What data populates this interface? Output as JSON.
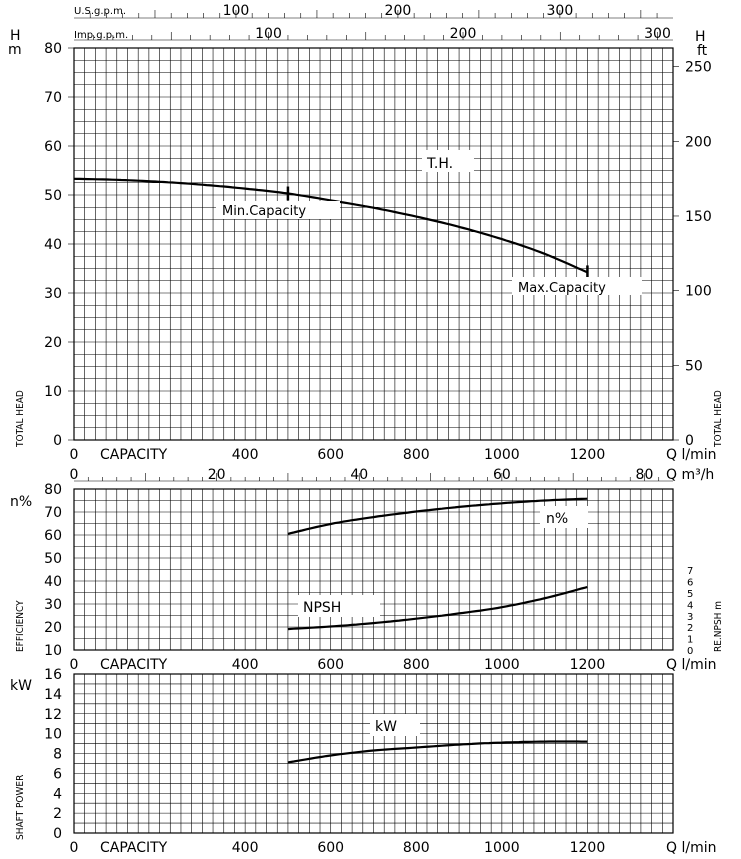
{
  "chart_data": [
    {
      "type": "line",
      "panel": "total-head",
      "ylabel_left": "TOTAL HEAD",
      "ylabel_right": "TOTAL HEAD",
      "unit_left": "H\nm",
      "unit_right": "H\nft",
      "left_ticks": [
        "0",
        "10",
        "20",
        "30",
        "40",
        "50",
        "60",
        "70",
        "80"
      ],
      "right_ticks": [
        "0",
        "50",
        "100",
        "150",
        "200",
        "250"
      ],
      "top_axis_1": {
        "label": "U.S.g.p.m.",
        "ticks": [
          "100",
          "200",
          "300"
        ]
      },
      "top_axis_2": {
        "label": "Imp.g.p.m.",
        "ticks": [
          "100",
          "200",
          "300"
        ]
      },
      "x_ticks": [
        "0",
        "400",
        "600",
        "800",
        "1000",
        "1200"
      ],
      "x_caption": "CAPACITY",
      "x_unit": "Q  l/min",
      "ylim": [
        0,
        80
      ],
      "xlim": [
        0,
        1400
      ],
      "grid": true,
      "series": [
        {
          "name": "T.H.",
          "x": [
            0,
            100,
            200,
            300,
            400,
            500,
            600,
            700,
            800,
            900,
            1000,
            1100,
            1200
          ],
          "y": [
            53.3,
            53.1,
            52.7,
            52.1,
            51.3,
            50.3,
            48.9,
            47.4,
            45.6,
            43.5,
            41.0,
            38.0,
            34.2
          ]
        }
      ],
      "annotations": [
        "Min.Capacity",
        "Max.Capacity"
      ]
    },
    {
      "type": "line",
      "panel": "efficiency-npsh",
      "ylabel_left": "EFFICIENCY",
      "ylabel_right": "RE.NPSH m",
      "unit_left": "n%",
      "left_ticks": [
        "10",
        "20",
        "30",
        "40",
        "50",
        "60",
        "70",
        "80"
      ],
      "right_ticks": [
        "0",
        "1",
        "2",
        "3",
        "4",
        "5",
        "6",
        "7"
      ],
      "top_axis": {
        "unit": "Q  m³/h",
        "ticks": [
          "0",
          "20",
          "40",
          "60",
          "80"
        ]
      },
      "x_ticks": [
        "0",
        "400",
        "600",
        "800",
        "1000",
        "1200"
      ],
      "x_caption": "CAPACITY",
      "x_unit": "Q  l/min",
      "ylim": [
        10,
        80
      ],
      "xlim": [
        0,
        1400
      ],
      "grid": true,
      "series": [
        {
          "name": "n%",
          "x": [
            500,
            600,
            700,
            800,
            900,
            1000,
            1100,
            1200
          ],
          "y": [
            60.5,
            64.8,
            67.8,
            70.2,
            72.2,
            73.8,
            75.0,
            75.8
          ]
        },
        {
          "name": "NPSH",
          "x": [
            500,
            600,
            700,
            800,
            900,
            1000,
            1100,
            1200
          ],
          "y": [
            19.1,
            20.2,
            21.7,
            23.6,
            25.9,
            28.6,
            32.5,
            37.4
          ]
        }
      ]
    },
    {
      "type": "line",
      "panel": "shaft-power",
      "ylabel_left": "SHAFT POWER",
      "unit_left": "kW",
      "left_ticks": [
        "0",
        "2",
        "4",
        "6",
        "8",
        "10",
        "12",
        "14",
        "16"
      ],
      "x_ticks": [
        "0",
        "400",
        "600",
        "800",
        "1000",
        "1200"
      ],
      "x_caption": "CAPACITY",
      "x_unit": "Q  l/min",
      "ylim": [
        0,
        16
      ],
      "xlim": [
        0,
        1400
      ],
      "grid": true,
      "series": [
        {
          "name": "kW",
          "x": [
            500,
            600,
            700,
            800,
            900,
            1000,
            1100,
            1200
          ],
          "y": [
            7.1,
            7.8,
            8.3,
            8.6,
            8.9,
            9.1,
            9.2,
            9.2
          ]
        }
      ]
    }
  ]
}
